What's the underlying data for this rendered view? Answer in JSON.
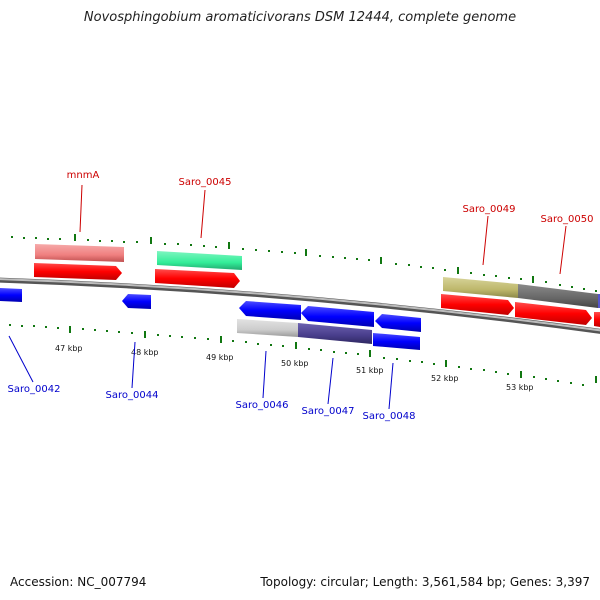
{
  "header": {
    "title": "Novosphingobium aromaticivorans DSM 12444, complete genome"
  },
  "footer": {
    "accession": "Accession: NC_007794",
    "stats": "Topology: circular; Length: 3,561,584 bp; Genes: 3,397"
  },
  "ruler": {
    "labels": [
      "47 kbp",
      "48 kbp",
      "49 kbp",
      "50 kbp",
      "51 kbp",
      "52 kbp",
      "53 kbp"
    ]
  },
  "genes": {
    "top": [
      "mnmA",
      "Saro_0045",
      "Saro_0049",
      "Saro_0050"
    ],
    "bottom": [
      "Saro_0042",
      "Saro_0044",
      "Saro_0046",
      "Saro_0047",
      "Saro_0048"
    ]
  },
  "colors": {
    "forward_label": "#cc0000",
    "reverse_label": "#0000cc",
    "forward_gene": "#ff0000",
    "reverse_gene": "#0000ff",
    "backbone": "#808080",
    "tick": "#117711",
    "cog_pink": "#f08080",
    "cog_green": "#33ee99",
    "cog_khaki": "#bdb76b",
    "cog_gray": "#666666",
    "cog_lightgray": "#cccccc",
    "cog_slate": "#483d8b"
  }
}
